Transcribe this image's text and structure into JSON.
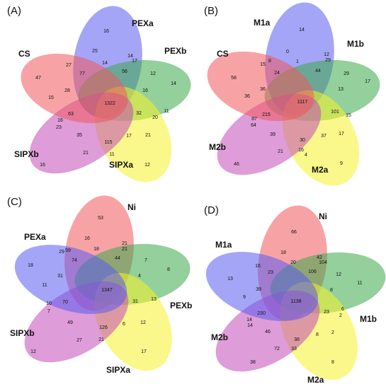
{
  "colors": {
    "red": "#f0585c",
    "blue": "#5b5bf0",
    "green": "#3aaa48",
    "yellow": "#f5f22a",
    "magenta": "#c24ab8"
  },
  "panels": [
    {
      "letter": "(A)",
      "sets": [
        "CS",
        "PEXa",
        "PEXb",
        "SIPXa",
        "SIPXb"
      ],
      "regions": [
        "16",
        "25",
        "14",
        "77",
        "17",
        "47",
        "56",
        "12",
        "27",
        "14",
        "15",
        "28",
        "1322",
        "16",
        "14",
        "63",
        "32",
        "20",
        "11",
        "16",
        "23",
        "35",
        "115",
        "17",
        "21",
        "21",
        "11",
        "16",
        "12"
      ]
    },
    {
      "letter": "(B)",
      "sets": [
        "CS",
        "M1a",
        "M1b",
        "M2a",
        "M2b"
      ],
      "regions": [
        "14",
        "0",
        "12",
        "8",
        "1",
        "29",
        "58",
        "15",
        "24",
        "44",
        "29",
        "36",
        "36",
        "1117",
        "13",
        "17",
        "87",
        "215",
        "101",
        "15",
        "64",
        "39",
        "30",
        "37",
        "17",
        "21",
        "16",
        "4",
        "46",
        "9"
      ]
    },
    {
      "letter": "(C)",
      "sets": [
        "Ni",
        "PEXa",
        "PEXb",
        "SIPXa",
        "SIPXb"
      ],
      "regions": [
        "53",
        "16",
        "21",
        "29",
        "59",
        "18",
        "21",
        "18",
        "74",
        "44",
        "7",
        "8",
        "31",
        "11",
        "1347",
        "4",
        "10",
        "70",
        "31",
        "13",
        "7",
        "49",
        "126",
        "12",
        "6",
        "21",
        "27",
        "17",
        "12"
      ]
    },
    {
      "letter": "(D)",
      "sets": [
        "Ni",
        "M1a",
        "M1b",
        "M2a",
        "M2b"
      ],
      "regions": [
        "66",
        "18",
        "42",
        "16",
        "20",
        "104",
        "23",
        "106",
        "12",
        "13",
        "39",
        "8",
        "11",
        "9",
        "1138",
        "23",
        "6",
        "14",
        "230",
        "2",
        "14",
        "46",
        "38",
        "8",
        "2",
        "72",
        "33",
        "38",
        "8"
      ]
    }
  ]
}
